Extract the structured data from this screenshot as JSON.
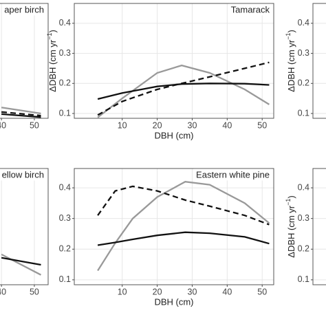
{
  "chart_data": [
    {
      "type": "line",
      "title": "aper birch",
      "xlim": [
        27,
        54.2
      ],
      "ylim": [
        0.084,
        0.466
      ],
      "xticks": [
        40,
        50
      ],
      "grid": true,
      "x": [
        40,
        52
      ],
      "series": [
        {
          "color": "#999999",
          "style": "solid",
          "values": [
            0.12,
            0.1
          ]
        },
        {
          "color": "#111111",
          "style": "dashed",
          "values": [
            0.105,
            0.093
          ]
        },
        {
          "color": "#111111",
          "style": "solid",
          "values": [
            0.098,
            0.088
          ]
        }
      ]
    },
    {
      "type": "line",
      "title": "Tamarack",
      "xlabel": "DBH (cm)",
      "ylabel": [
        "ΔDBH (cm yr",
        "−1",
        ")"
      ],
      "xlim": [
        -3.7,
        53.3
      ],
      "ylim": [
        0.084,
        0.466
      ],
      "xticks": [
        10,
        20,
        30,
        40,
        50
      ],
      "yticks": [
        0.1,
        0.2,
        0.3,
        0.4
      ],
      "grid": true,
      "x": [
        3,
        10,
        20,
        27,
        35,
        45,
        52
      ],
      "series": [
        {
          "color": "#999999",
          "style": "solid",
          "values": [
            0.087,
            0.15,
            0.235,
            0.26,
            0.235,
            0.18,
            0.13
          ]
        },
        {
          "color": "#111111",
          "style": "dashed",
          "values": [
            0.095,
            0.14,
            0.18,
            0.2,
            0.222,
            0.25,
            0.27
          ]
        },
        {
          "color": "#111111",
          "style": "solid",
          "values": [
            0.148,
            0.168,
            0.19,
            0.198,
            0.2,
            0.199,
            0.195
          ]
        }
      ]
    },
    {
      "type": "line",
      "ylabel": [
        "ΔDBH (cm yr",
        "−1",
        ")"
      ],
      "ylim": [
        0.084,
        0.466
      ],
      "yticks": [
        0.1,
        0.2,
        0.3,
        0.4
      ],
      "grid": true
    },
    {
      "type": "line",
      "title": "ellow birch",
      "xlim": [
        27,
        54.2
      ],
      "ylim": [
        0.084,
        0.463
      ],
      "xticks": [
        40,
        50
      ],
      "grid": true,
      "x": [
        40,
        52
      ],
      "series": [
        {
          "color": "#999999",
          "style": "solid",
          "values": [
            0.183,
            0.116
          ]
        },
        {
          "color": "#111111",
          "style": "solid",
          "values": [
            0.172,
            0.149
          ]
        }
      ]
    },
    {
      "type": "line",
      "title": "Eastern white pine",
      "xlabel": "DBH (cm)",
      "xlim": [
        -3.7,
        53.3
      ],
      "ylim": [
        0.084,
        0.463
      ],
      "xticks": [
        10,
        20,
        30,
        40,
        50
      ],
      "yticks": [
        0.1,
        0.2,
        0.3,
        0.4
      ],
      "grid": true,
      "x": [
        3,
        8,
        13,
        20,
        28,
        35,
        45,
        52
      ],
      "series": [
        {
          "color": "#999999",
          "style": "solid",
          "values": [
            0.13,
            0.22,
            0.3,
            0.37,
            0.42,
            0.41,
            0.35,
            0.285
          ]
        },
        {
          "color": "#111111",
          "style": "dashed",
          "values": [
            0.31,
            0.39,
            0.405,
            0.39,
            0.36,
            0.34,
            0.31,
            0.28
          ]
        },
        {
          "color": "#111111",
          "style": "solid",
          "values": [
            0.213,
            0.222,
            0.232,
            0.245,
            0.255,
            0.252,
            0.24,
            0.218
          ]
        }
      ]
    },
    {
      "type": "line",
      "ylabel": [
        "ΔDBH (cm yr",
        "−1",
        ")"
      ],
      "ylim": [
        0.084,
        0.463
      ],
      "yticks": [
        0.1,
        0.2,
        0.3,
        0.4
      ],
      "grid": true
    }
  ]
}
